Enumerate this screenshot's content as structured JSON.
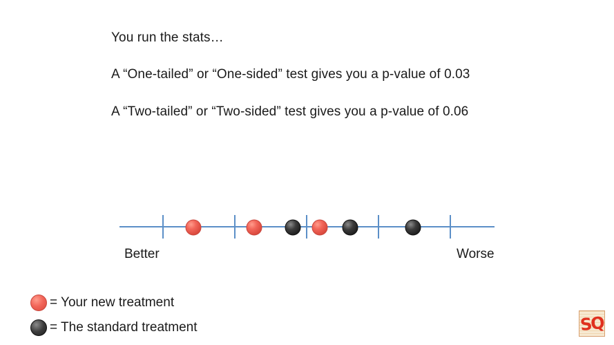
{
  "text": {
    "line1": "You run the stats…",
    "line2": "A “One-tailed” or “One-sided” test gives you a p-value of 0.03",
    "line3": "A “Two-tailed” or “Two-sided” test gives you a p-value of 0.06"
  },
  "axis": {
    "left_label": "Better",
    "right_label": "Worse",
    "line_color": "#5b8fc7"
  },
  "legend": {
    "new_treatment": "= Your new treatment",
    "standard_treatment": "= The standard treatment"
  },
  "colors": {
    "new_treatment": "#f2665a",
    "standard_treatment": "#3c3c3c"
  },
  "logo": {
    "text": "SQ!"
  }
}
